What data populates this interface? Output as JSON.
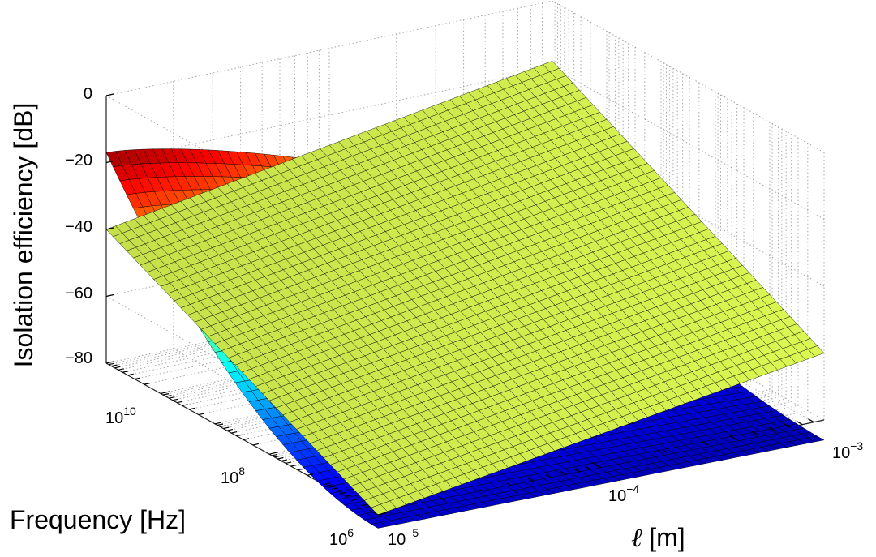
{
  "chart_data": {
    "type": "surface3d",
    "zlabel": "Isolation efficiency [dB]",
    "ylabel": "Frequency [Hz]",
    "xlabel_symbol": "ℓ",
    "xlabel_unit": " [m]",
    "x_scale": "log",
    "y_scale": "log",
    "x_range_m": [
      1e-05,
      0.001
    ],
    "y_range_hz": [
      1000000,
      100000000000.0
    ],
    "zlim_db": [
      -80,
      0
    ],
    "z_ticks": [
      {
        "value": 0,
        "label": "0"
      },
      {
        "value": -20,
        "label": "−20"
      },
      {
        "value": -40,
        "label": "−40"
      },
      {
        "value": -60,
        "label": "−60"
      },
      {
        "value": -80,
        "label": "−80"
      }
    ],
    "x_ticks": [
      {
        "value": 1e-05,
        "base": "10",
        "exp": "−5"
      },
      {
        "value": 0.0001,
        "base": "10",
        "exp": "−4"
      },
      {
        "value": 0.001,
        "base": "10",
        "exp": "−3"
      }
    ],
    "y_ticks": [
      {
        "value": 1000000,
        "base": "10",
        "exp": "6"
      },
      {
        "value": 100000000,
        "base": "10",
        "exp": "8"
      },
      {
        "value": 10000000000,
        "base": "10",
        "exp": "10"
      }
    ],
    "grid": true,
    "surfaces": [
      {
        "description_id": "tilted-plane",
        "color": "#d4f050",
        "corners_db": {
          "xmin_ymin": -80,
          "xmax_ymin": -60,
          "xmin_ymax": -40,
          "xmax_ymax": -18
        }
      },
      {
        "description_id": "jet-surface",
        "colormap": "jet",
        "values_db": {
          "xmin_ymin": -84,
          "xmax_ymin": -86,
          "xmin_ymax": -17,
          "xmax_ymax": -62,
          "mid_x_ymax": -26
        }
      }
    ]
  }
}
